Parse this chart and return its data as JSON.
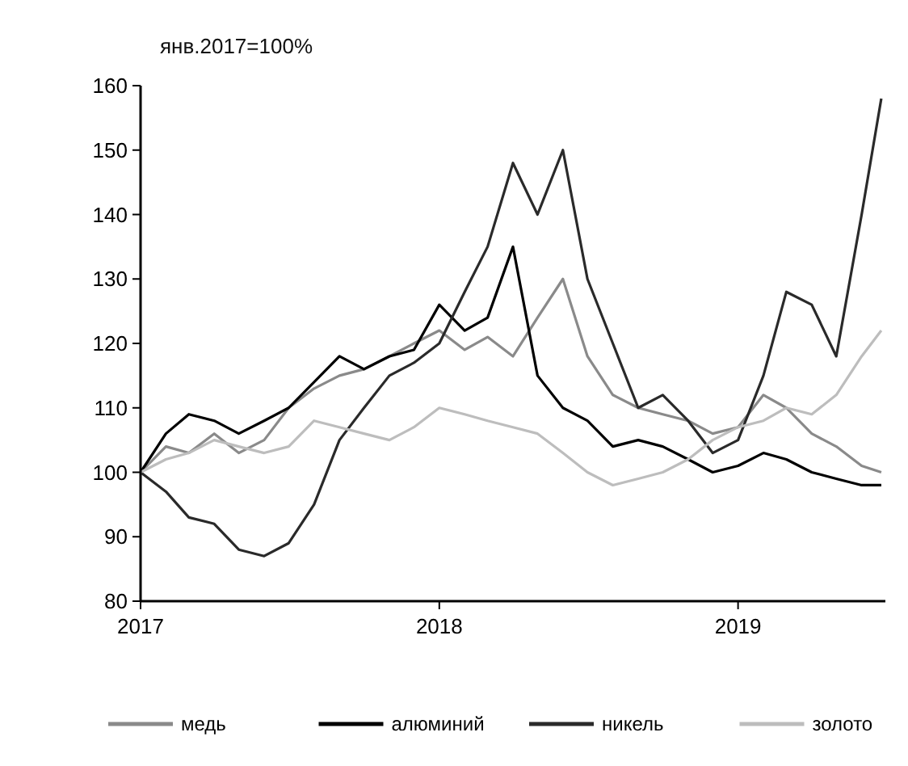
{
  "chart_data": {
    "type": "line",
    "title": "янв.2017=100%",
    "x": [
      "2017-01-01",
      "2017-02-01",
      "2017-03-01",
      "2017-04-01",
      "2017-05-01",
      "2017-06-01",
      "2017-07-01",
      "2017-08-01",
      "2017-09-01",
      "2017-10-01",
      "2017-11-01",
      "2017-12-01",
      "2018-01-01",
      "2018-02-01",
      "2018-03-01",
      "2018-04-01",
      "2018-05-01",
      "2018-06-01",
      "2018-07-01",
      "2018-08-01",
      "2018-09-01",
      "2018-10-01",
      "2018-11-01",
      "2018-12-01",
      "2019-01-01",
      "2019-02-01",
      "2019-03-01",
      "2019-04-01",
      "2019-05-01",
      "2019-06-01",
      "2019-06-25"
    ],
    "series": [
      {
        "name": "медь",
        "color": "#8a8a8a",
        "values": [
          100,
          104,
          103,
          106,
          103,
          105,
          110,
          113,
          115,
          116,
          118,
          120,
          122,
          119,
          121,
          118,
          124,
          130,
          118,
          112,
          110,
          109,
          108,
          106,
          107,
          112,
          110,
          106,
          104,
          101,
          100
        ]
      },
      {
        "name": "алюминий",
        "color": "#000000",
        "values": [
          100,
          106,
          109,
          108,
          106,
          108,
          110,
          114,
          118,
          116,
          118,
          119,
          126,
          122,
          124,
          135,
          115,
          110,
          108,
          104,
          105,
          104,
          102,
          100,
          101,
          103,
          102,
          100,
          99,
          98,
          98
        ]
      },
      {
        "name": "никель",
        "color": "#2a2a2a",
        "values": [
          100,
          97,
          93,
          92,
          88,
          87,
          89,
          95,
          105,
          110,
          115,
          117,
          120,
          128,
          135,
          148,
          140,
          150,
          130,
          120,
          110,
          112,
          108,
          103,
          105,
          115,
          128,
          126,
          118,
          140,
          158
        ]
      },
      {
        "name": "золото",
        "color": "#bdbdbd",
        "values": [
          100,
          102,
          103,
          105,
          104,
          103,
          104,
          108,
          107,
          106,
          105,
          107,
          110,
          109,
          108,
          107,
          106,
          103,
          100,
          98,
          99,
          100,
          102,
          105,
          107,
          108,
          110,
          109,
          112,
          118,
          122
        ]
      }
    ],
    "xlim": [
      "2017-01-01",
      "2019-06-30"
    ],
    "xticks": [
      {
        "value": "2017-01-01",
        "label": "2017"
      },
      {
        "value": "2018-01-01",
        "label": "2018"
      },
      {
        "value": "2019-01-01",
        "label": "2019"
      }
    ],
    "ylim": [
      80,
      160
    ],
    "yticks": [
      80,
      90,
      100,
      110,
      120,
      130,
      140,
      150,
      160
    ],
    "grid": false,
    "legend": "bottom",
    "line_style": "solid",
    "marker": "none"
  }
}
